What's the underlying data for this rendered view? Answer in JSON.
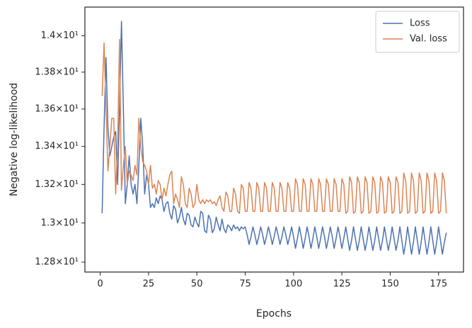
{
  "chart_data": {
    "type": "line",
    "xlabel": "Epochs",
    "ylabel": "Negative log-likelihood",
    "x": [
      1,
      2,
      3,
      4,
      5,
      6,
      7,
      8,
      9,
      10,
      11,
      12,
      13,
      14,
      15,
      16,
      17,
      18,
      19,
      20,
      21,
      22,
      23,
      24,
      25,
      26,
      27,
      28,
      29,
      30,
      31,
      32,
      33,
      34,
      35,
      36,
      37,
      38,
      39,
      40,
      41,
      42,
      43,
      44,
      45,
      46,
      47,
      48,
      49,
      50,
      51,
      52,
      53,
      54,
      55,
      56,
      57,
      58,
      59,
      60,
      61,
      62,
      63,
      64,
      65,
      66,
      67,
      68,
      69,
      70,
      71,
      72,
      73,
      74,
      75,
      76,
      77,
      78,
      79,
      80,
      81,
      82,
      83,
      84,
      85,
      86,
      87,
      88,
      89,
      90,
      91,
      92,
      93,
      94,
      95,
      96,
      97,
      98,
      99,
      100,
      101,
      102,
      103,
      104,
      105,
      106,
      107,
      108,
      109,
      110,
      111,
      112,
      113,
      114,
      115,
      116,
      117,
      118,
      119,
      120,
      121,
      122,
      123,
      124,
      125,
      126,
      127,
      128,
      129,
      130,
      131,
      132,
      133,
      134,
      135,
      136,
      137,
      138,
      139,
      140,
      141,
      142,
      143,
      144,
      145,
      146,
      147,
      148,
      149,
      150,
      151,
      152,
      153,
      154,
      155,
      156,
      157,
      158,
      159,
      160,
      161,
      162,
      163,
      164,
      165,
      166,
      167,
      168,
      169,
      170,
      171,
      172,
      173,
      174,
      175,
      176,
      177,
      178,
      179
    ],
    "series": [
      {
        "name": "Loss",
        "color": "#4c72b0",
        "values": [
          13.05,
          13.5,
          13.88,
          13.5,
          13.35,
          13.4,
          13.45,
          13.48,
          13.2,
          13.6,
          14.08,
          13.6,
          13.1,
          13.2,
          13.35,
          13.2,
          13.15,
          13.2,
          13.1,
          13.3,
          13.55,
          13.4,
          13.15,
          13.25,
          13.2,
          13.08,
          13.1,
          13.08,
          13.13,
          13.1,
          13.14,
          13.12,
          13.06,
          13.1,
          13.11,
          13.05,
          13.02,
          13.09,
          13.07,
          13.0,
          13.03,
          13.08,
          13.02,
          12.99,
          13.05,
          13.04,
          12.99,
          12.98,
          13.03,
          13.0,
          12.98,
          13.06,
          13.05,
          12.96,
          12.95,
          13.04,
          13.02,
          12.95,
          12.97,
          13.03,
          12.99,
          12.96,
          13.02,
          12.97,
          12.95,
          12.99,
          12.98,
          12.96,
          12.99,
          12.97,
          12.98,
          12.96,
          12.98,
          12.97,
          12.98,
          12.94,
          12.89,
          12.93,
          12.98,
          12.94,
          12.89,
          12.93,
          12.98,
          12.94,
          12.89,
          12.93,
          12.98,
          12.94,
          12.89,
          12.93,
          12.98,
          12.94,
          12.89,
          12.93,
          12.98,
          12.94,
          12.89,
          12.93,
          12.98,
          12.93,
          12.87,
          12.92,
          12.98,
          12.93,
          12.87,
          12.92,
          12.98,
          12.93,
          12.87,
          12.92,
          12.98,
          12.93,
          12.87,
          12.92,
          12.98,
          12.93,
          12.87,
          12.92,
          12.98,
          12.93,
          12.87,
          12.92,
          12.98,
          12.93,
          12.87,
          12.92,
          12.98,
          12.92,
          12.86,
          12.91,
          12.98,
          12.92,
          12.86,
          12.91,
          12.98,
          12.92,
          12.86,
          12.91,
          12.98,
          12.92,
          12.86,
          12.91,
          12.98,
          12.92,
          12.86,
          12.91,
          12.98,
          12.92,
          12.86,
          12.91,
          12.98,
          12.92,
          12.86,
          12.91,
          12.98,
          12.91,
          12.84,
          12.9,
          12.98,
          12.91,
          12.84,
          12.9,
          12.98,
          12.91,
          12.84,
          12.9,
          12.98,
          12.91,
          12.84,
          12.9,
          12.98,
          12.91,
          12.84,
          12.9,
          12.98,
          12.91,
          12.84,
          12.9,
          12.95
        ]
      },
      {
        "name": "Val. loss",
        "color": "#dd8452",
        "values": [
          13.67,
          13.96,
          13.6,
          13.27,
          13.4,
          13.55,
          13.55,
          13.15,
          13.4,
          13.98,
          13.17,
          13.3,
          13.4,
          13.2,
          13.27,
          13.25,
          13.22,
          13.3,
          13.25,
          13.55,
          13.4,
          13.32,
          13.3,
          13.27,
          13.2,
          13.3,
          13.18,
          13.2,
          13.15,
          13.22,
          13.2,
          13.12,
          13.18,
          13.14,
          13.2,
          13.25,
          13.27,
          13.1,
          13.15,
          13.12,
          13.08,
          13.24,
          13.2,
          13.1,
          13.08,
          13.18,
          13.15,
          13.08,
          13.1,
          13.2,
          13.12,
          13.1,
          13.12,
          13.1,
          13.12,
          13.11,
          13.12,
          13.1,
          13.11,
          13.09,
          13.12,
          13.14,
          13.08,
          13.06,
          13.16,
          13.14,
          13.06,
          13.06,
          13.18,
          13.15,
          13.06,
          13.05,
          13.2,
          13.18,
          13.06,
          13.06,
          13.21,
          13.18,
          13.06,
          13.06,
          13.21,
          13.18,
          13.06,
          13.06,
          13.21,
          13.18,
          13.06,
          13.06,
          13.21,
          13.18,
          13.06,
          13.06,
          13.21,
          13.18,
          13.06,
          13.06,
          13.21,
          13.18,
          13.06,
          13.06,
          13.23,
          13.2,
          13.06,
          13.06,
          13.23,
          13.2,
          13.06,
          13.06,
          13.23,
          13.2,
          13.06,
          13.06,
          13.23,
          13.2,
          13.06,
          13.06,
          13.23,
          13.2,
          13.06,
          13.06,
          13.23,
          13.2,
          13.06,
          13.06,
          13.23,
          13.2,
          13.05,
          13.06,
          13.24,
          13.21,
          13.05,
          13.06,
          13.24,
          13.21,
          13.05,
          13.06,
          13.24,
          13.21,
          13.05,
          13.06,
          13.24,
          13.21,
          13.05,
          13.06,
          13.24,
          13.21,
          13.05,
          13.06,
          13.24,
          13.21,
          13.05,
          13.06,
          13.24,
          13.21,
          13.05,
          13.06,
          13.26,
          13.22,
          13.05,
          13.06,
          13.26,
          13.22,
          13.05,
          13.06,
          13.26,
          13.22,
          13.05,
          13.06,
          13.26,
          13.22,
          13.05,
          13.06,
          13.26,
          13.22,
          13.05,
          13.06,
          13.26,
          13.22,
          13.05
        ]
      }
    ],
    "xlim": [
      -7.9,
      187.9
    ],
    "xticks": [
      0,
      25,
      50,
      75,
      100,
      125,
      150,
      175
    ],
    "ylim": [
      12.75,
      14.16
    ],
    "yscale": "log",
    "yticks": [
      {
        "value": 12.8,
        "label": "1.28×10¹"
      },
      {
        "value": 13.0,
        "label": "1.3×10¹"
      },
      {
        "value": 13.2,
        "label": "1.32×10¹"
      },
      {
        "value": 13.4,
        "label": "1.34×10¹"
      },
      {
        "value": 13.6,
        "label": "1.36×10¹"
      },
      {
        "value": 13.8,
        "label": "1.38×10¹"
      },
      {
        "value": 14.0,
        "label": "1.4×10¹"
      }
    ],
    "grid": false,
    "legend": "upper right"
  }
}
